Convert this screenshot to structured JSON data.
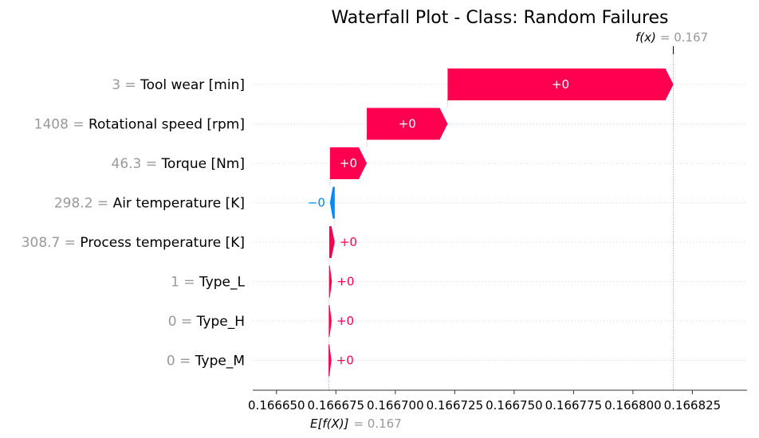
{
  "chart_data": {
    "type": "waterfall",
    "title": "Waterfall Plot - Class: Random Failures",
    "fx_label": "f(x)",
    "fx_value": "= 0.167",
    "efx_label": "E[f(X)]",
    "efx_value": "= 0.167",
    "base_value": 0.166672,
    "final_value": 0.166817,
    "xlim": [
      0.16664,
      0.166848
    ],
    "x_ticks": [
      0.16665,
      0.166675,
      0.1667,
      0.166725,
      0.16675,
      0.166775,
      0.1668,
      0.166825
    ],
    "x_tick_labels": [
      "0.166650",
      "0.166675",
      "0.166700",
      "0.166725",
      "0.166750",
      "0.166775",
      "0.166800",
      "0.166825"
    ],
    "colors": {
      "positive": "#ff0051",
      "negative": "#008bfb"
    },
    "features": [
      {
        "value": "3",
        "name": "Tool wear [min]",
        "start": 0.166722,
        "end": 0.166817,
        "label": "+0"
      },
      {
        "value": "1408",
        "name": "Rotational speed [rpm]",
        "start": 0.166688,
        "end": 0.166722,
        "label": "+0"
      },
      {
        "value": "46.3",
        "name": "Torque [Nm]",
        "start": 0.1666725,
        "end": 0.166688,
        "label": "+0"
      },
      {
        "value": "298.2",
        "name": "Air temperature [K]",
        "start": 0.1666745,
        "end": 0.1666725,
        "label": "−0"
      },
      {
        "value": "308.7",
        "name": "Process temperature [K]",
        "start": 0.1666722,
        "end": 0.1666745,
        "label": "+0"
      },
      {
        "value": "1",
        "name": "Type_L",
        "start": 0.1666721,
        "end": 0.1666733,
        "label": "+0"
      },
      {
        "value": "0",
        "name": "Type_H",
        "start": 0.166672,
        "end": 0.1666732,
        "label": "+0"
      },
      {
        "value": "0",
        "name": "Type_M",
        "start": 0.1666719,
        "end": 0.1666731,
        "label": "+0"
      }
    ]
  }
}
